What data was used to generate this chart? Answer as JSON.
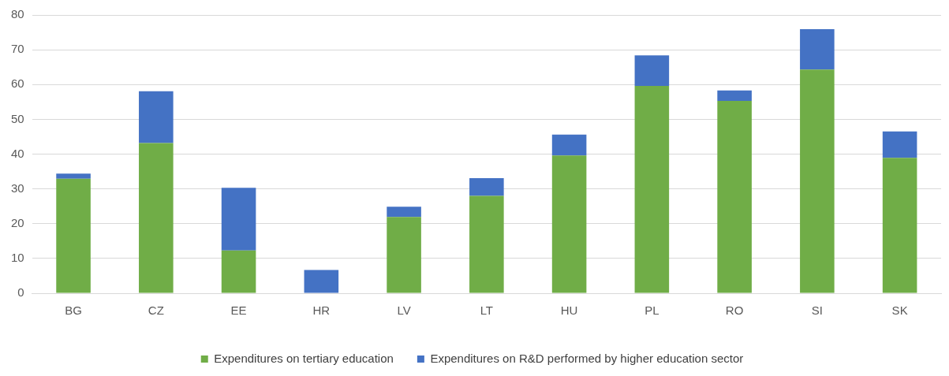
{
  "chart_data": {
    "type": "bar",
    "stacked": true,
    "categories": [
      "BG",
      "CZ",
      "EE",
      "HR",
      "LV",
      "LT",
      "HU",
      "PL",
      "RO",
      "SI",
      "SK"
    ],
    "series": [
      {
        "name": "Expenditures on tertiary education",
        "color": "#70ad47",
        "values": [
          32.9,
          43.2,
          12.3,
          0,
          21.9,
          28,
          39.6,
          59.6,
          55.3,
          64.3,
          38.9
        ]
      },
      {
        "name": "Expenditures on R&D performed by higher education sector",
        "color": "#4472c4",
        "values": [
          1.5,
          14.9,
          18,
          6.7,
          3,
          5.1,
          6,
          8.8,
          3,
          11.6,
          7.6
        ]
      }
    ],
    "ylim": [
      0,
      80
    ],
    "yticks": [
      0,
      10,
      20,
      30,
      40,
      50,
      60,
      70,
      80
    ],
    "grid": "y",
    "legend": "bottom"
  }
}
